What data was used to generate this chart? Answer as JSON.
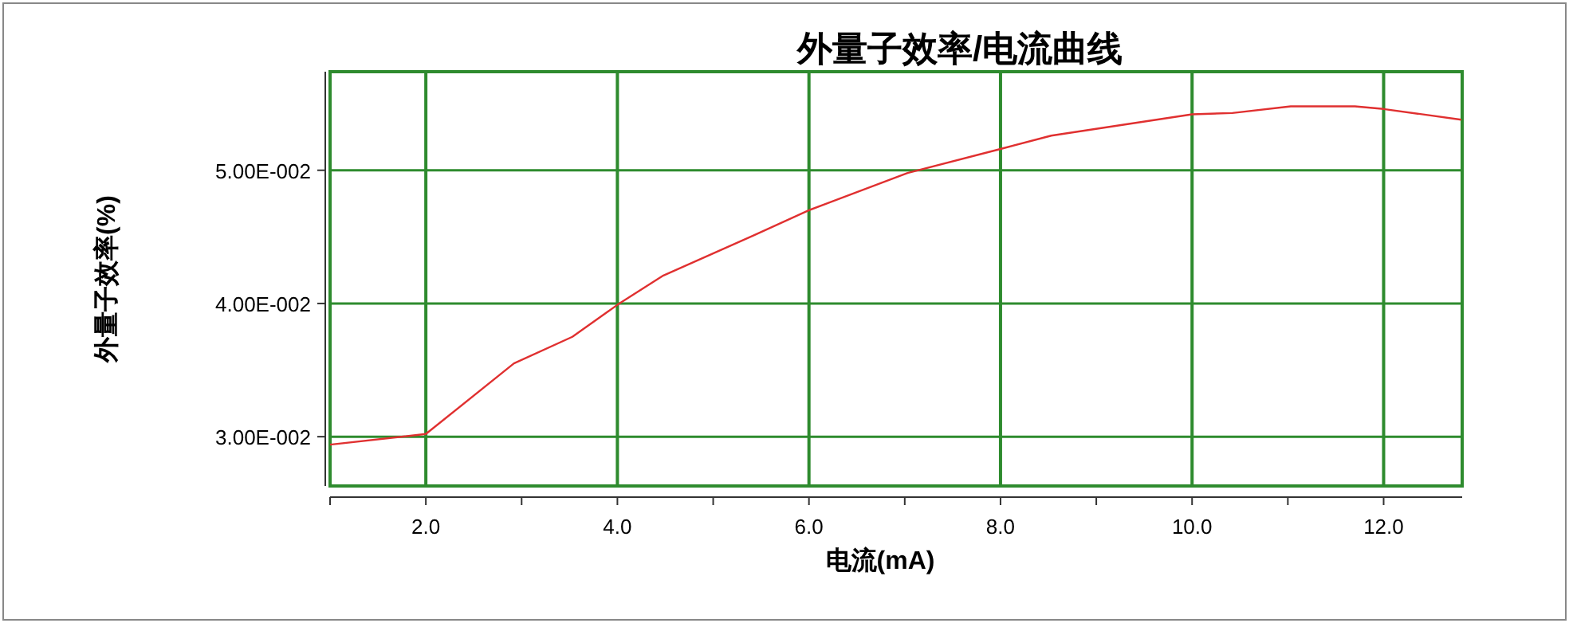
{
  "chart_data": {
    "type": "line",
    "title": "外量子效率/电流曲线",
    "xlabel": "电流(mA)",
    "ylabel": "外量子效率(%)",
    "x": [
      1.0,
      2.0,
      2.92,
      3.53,
      4.0,
      4.48,
      5.42,
      6.0,
      7.03,
      8.0,
      8.53,
      10.0,
      10.42,
      11.03,
      11.7,
      12.0,
      12.81
    ],
    "series": [
      {
        "color": "#e03030",
        "values": [
          0.0294,
          0.0302,
          0.0355,
          0.0375,
          0.0399,
          0.0421,
          0.0451,
          0.047,
          0.0498,
          0.0516,
          0.0526,
          0.0542,
          0.0543,
          0.0548,
          0.0548,
          0.0546,
          0.0538
        ]
      }
    ],
    "xlim": [
      1.0,
      12.82
    ],
    "ylim": [
      0.0263,
      0.0574
    ],
    "xticks": [
      {
        "value": 1.0,
        "label": null
      },
      {
        "value": 2.0,
        "label": "2.0"
      },
      {
        "value": 3.0,
        "label": null
      },
      {
        "value": 4.0,
        "label": "4.0"
      },
      {
        "value": 5.0,
        "label": null
      },
      {
        "value": 6.0,
        "label": "6.0"
      },
      {
        "value": 7.0,
        "label": null
      },
      {
        "value": 8.0,
        "label": "8.0"
      },
      {
        "value": 9.0,
        "label": null
      },
      {
        "value": 10.0,
        "label": "10.0"
      },
      {
        "value": 11.0,
        "label": null
      },
      {
        "value": 12.0,
        "label": "12.0"
      }
    ],
    "yticks": [
      {
        "value": 0.03,
        "label": "3.00E-002"
      },
      {
        "value": 0.04,
        "label": "4.00E-002"
      },
      {
        "value": 0.05,
        "label": "5.00E-002"
      }
    ],
    "grid": true,
    "marker": "none",
    "line_style": "solid"
  }
}
